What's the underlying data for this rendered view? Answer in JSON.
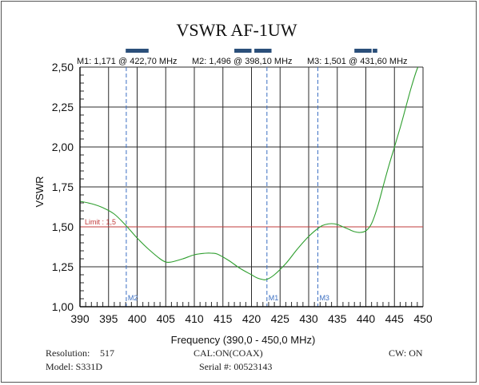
{
  "chart_data": {
    "type": "line",
    "title": "VSWR AF-1UW",
    "xlabel": "Frequency (390,0 - 450,0 MHz)",
    "ylabel": "VSWR",
    "xlim": [
      390,
      450
    ],
    "ylim": [
      1.0,
      2.5
    ],
    "x_ticks": [
      "390",
      "395",
      "400",
      "405",
      "410",
      "415",
      "420",
      "425",
      "430",
      "435",
      "440",
      "445",
      "450"
    ],
    "y_ticks": [
      "1,00",
      "1,25",
      "1,50",
      "1,75",
      "2,00",
      "2,25",
      "2,50"
    ],
    "grid": true,
    "line_color": "#2e9e2e",
    "limit": {
      "label": "Limit : 1,5",
      "value": 1.5,
      "color": "#c23b3b"
    },
    "series": [
      {
        "x": [
          390,
          392,
          394,
          396,
          398,
          400,
          402,
          404,
          405,
          406,
          408,
          410,
          412,
          413,
          414,
          416,
          418,
          420,
          421,
          422,
          422.7,
          424,
          426,
          428,
          430,
          432,
          433,
          434,
          435,
          436,
          437,
          438,
          439,
          440,
          441,
          442,
          443,
          444,
          445,
          446,
          447,
          448,
          449,
          450
        ],
        "y": [
          1.66,
          1.645,
          1.62,
          1.58,
          1.51,
          1.43,
          1.36,
          1.3,
          1.28,
          1.28,
          1.3,
          1.325,
          1.335,
          1.335,
          1.33,
          1.29,
          1.24,
          1.2,
          1.18,
          1.17,
          1.171,
          1.2,
          1.27,
          1.36,
          1.44,
          1.5,
          1.515,
          1.52,
          1.515,
          1.5,
          1.485,
          1.47,
          1.465,
          1.475,
          1.52,
          1.62,
          1.75,
          1.88,
          2.0,
          2.12,
          2.25,
          2.38,
          2.49,
          2.55
        ]
      }
    ],
    "markers": [
      {
        "id": "M2",
        "x": 398.1,
        "label": "M2: 1,496  @ 398,10 MHz",
        "color": "#3b6fc2"
      },
      {
        "id": "M1",
        "x": 422.7,
        "label": "M1: 1,171  @ 422,70 MHz",
        "color": "#3b6fc2"
      },
      {
        "id": "M3",
        "x": 431.6,
        "label": "M3: 1,501  @ 431,60 MHz",
        "color": "#3b6fc2"
      }
    ],
    "top_bands": [
      [
        398,
        402
      ],
      [
        417,
        420
      ],
      [
        420.5,
        423.5
      ],
      [
        438,
        441
      ],
      [
        441.2,
        442
      ]
    ]
  },
  "footer": {
    "resolution_label": "Resolution:",
    "resolution_value": "517",
    "cal": "CAL:ON(COAX)",
    "cw": "CW: ON",
    "model": "Model: S331D",
    "serial": "Serial #: 00523143"
  }
}
